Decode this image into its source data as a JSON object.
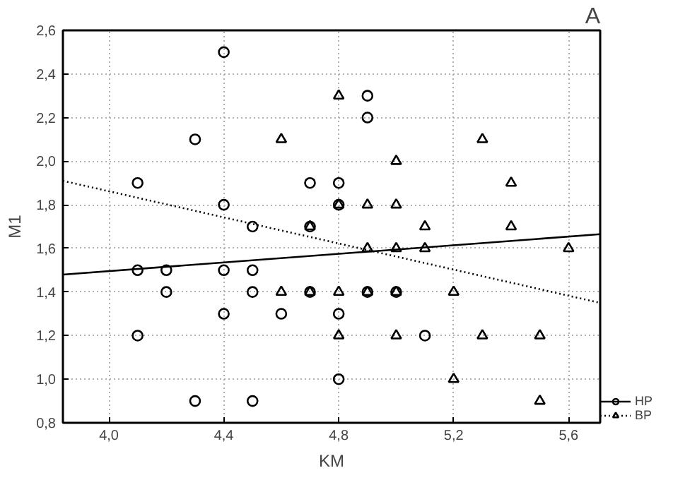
{
  "chart_data": {
    "type": "scatter",
    "title": "A",
    "xlabel": "KM",
    "ylabel": "M1",
    "xlim": [
      3.84,
      5.71
    ],
    "ylim": [
      0.8,
      2.6
    ],
    "xticks": [
      {
        "value": 4.0,
        "label": "4,0"
      },
      {
        "value": 4.4,
        "label": "4,4"
      },
      {
        "value": 4.8,
        "label": "4,8"
      },
      {
        "value": 5.2,
        "label": "5,2"
      },
      {
        "value": 5.6,
        "label": "5,6"
      }
    ],
    "yticks": [
      {
        "value": 0.8,
        "label": "0,8"
      },
      {
        "value": 1.0,
        "label": "1,0"
      },
      {
        "value": 1.2,
        "label": "1,2"
      },
      {
        "value": 1.4,
        "label": "1,4"
      },
      {
        "value": 1.6,
        "label": "1,6"
      },
      {
        "value": 1.8,
        "label": "1,8"
      },
      {
        "value": 2.0,
        "label": "2,0"
      },
      {
        "value": 2.2,
        "label": "2,2"
      },
      {
        "value": 2.4,
        "label": "2,4"
      },
      {
        "value": 2.6,
        "label": "2,6"
      }
    ],
    "grid": true,
    "legend": "bottom right",
    "series": [
      {
        "name": "HP",
        "type": "scatter",
        "marker": "circle",
        "color": "#000000",
        "x": [
          4.4,
          4.3,
          4.1,
          4.4,
          4.7,
          4.8,
          4.9,
          4.9,
          4.8,
          4.5,
          4.7,
          4.1,
          4.2,
          4.4,
          4.5,
          4.2,
          4.5,
          4.7,
          4.9,
          5.0,
          4.4,
          4.6,
          4.8,
          4.1,
          5.1,
          4.8,
          4.3,
          4.5
        ],
        "values": [
          2.5,
          2.1,
          1.9,
          1.8,
          1.9,
          1.9,
          2.3,
          2.2,
          1.8,
          1.7,
          1.7,
          1.5,
          1.5,
          1.5,
          1.5,
          1.4,
          1.4,
          1.4,
          1.4,
          1.4,
          1.3,
          1.3,
          1.3,
          1.2,
          1.2,
          1.0,
          0.9,
          0.9
        ]
      },
      {
        "type": "line",
        "line_style": "solid",
        "color": "#000000",
        "x": [
          3.84,
          5.71
        ],
        "values": [
          1.48,
          1.665
        ]
      },
      {
        "name": "BP",
        "type": "scatter",
        "marker": "triangle",
        "color": "#000000",
        "x": [
          4.8,
          4.6,
          5.3,
          5.0,
          4.8,
          4.9,
          5.0,
          5.4,
          4.7,
          5.1,
          5.4,
          4.9,
          5.0,
          5.1,
          5.6,
          4.6,
          4.7,
          4.8,
          4.9,
          5.0,
          5.2,
          4.8,
          5.0,
          5.3,
          5.5,
          5.2,
          5.5
        ],
        "values": [
          2.3,
          2.1,
          2.1,
          2.0,
          1.8,
          1.8,
          1.8,
          1.9,
          1.7,
          1.7,
          1.7,
          1.6,
          1.6,
          1.6,
          1.6,
          1.4,
          1.4,
          1.4,
          1.4,
          1.4,
          1.4,
          1.2,
          1.2,
          1.2,
          1.2,
          1.0,
          0.9
        ]
      },
      {
        "type": "line",
        "line_style": "dotted",
        "color": "#000000",
        "x": [
          3.84,
          5.71
        ],
        "values": [
          1.91,
          1.35
        ]
      }
    ]
  }
}
